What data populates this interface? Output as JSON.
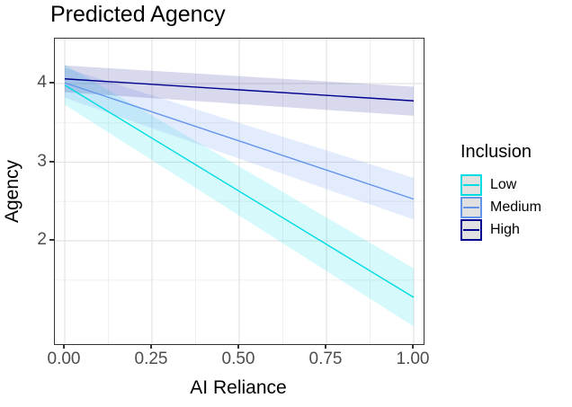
{
  "title": "Predicted Agency",
  "axes": {
    "x": {
      "label": "AI Reliance",
      "ticks": [
        "0.00",
        "0.25",
        "0.50",
        "0.75",
        "1.00"
      ],
      "tick_values": [
        0,
        0.25,
        0.5,
        0.75,
        1
      ]
    },
    "y": {
      "label": "Agency",
      "ticks": [
        "4",
        "3",
        "2"
      ],
      "tick_values": [
        4,
        3,
        2
      ]
    }
  },
  "legend": {
    "title": "Inclusion",
    "items": [
      {
        "label": "Low",
        "color": "#00dce4"
      },
      {
        "label": "Medium",
        "color": "#6495ed"
      },
      {
        "label": "High",
        "color": "#000090"
      }
    ]
  },
  "chart_data": {
    "type": "line",
    "title": "Predicted Agency",
    "xlabel": "AI Reliance",
    "ylabel": "Agency",
    "x_range": [
      0,
      1
    ],
    "x_ticks": [
      0,
      0.25,
      0.5,
      0.75,
      1
    ],
    "x_minor": [
      0.125,
      0.375,
      0.625,
      0.875
    ],
    "y_ticks": [
      2,
      3,
      4
    ],
    "y_minor": [
      1.5,
      2.5,
      3.5
    ],
    "grid": true,
    "legend_position": "right",
    "legend_title": "Inclusion",
    "series": [
      {
        "name": "Low",
        "x": [
          0,
          1
        ],
        "y": [
          3.98,
          1.28
        ],
        "ci_upper": [
          4.24,
          1.65
        ],
        "ci_lower": [
          3.73,
          0.91
        ],
        "color": "#00dce4",
        "fill_opacity": 0.16
      },
      {
        "name": "Medium",
        "x": [
          0,
          1
        ],
        "y": [
          4.01,
          2.53
        ],
        "ci_upper": [
          4.2,
          2.8
        ],
        "ci_lower": [
          3.82,
          2.27
        ],
        "color": "#6495ed",
        "fill_opacity": 0.18
      },
      {
        "name": "High",
        "x": [
          0,
          1
        ],
        "y": [
          4.06,
          3.78
        ],
        "ci_upper": [
          4.23,
          3.96
        ],
        "ci_lower": [
          3.89,
          3.59
        ],
        "color": "#000090",
        "fill_opacity": 0.15
      }
    ]
  }
}
